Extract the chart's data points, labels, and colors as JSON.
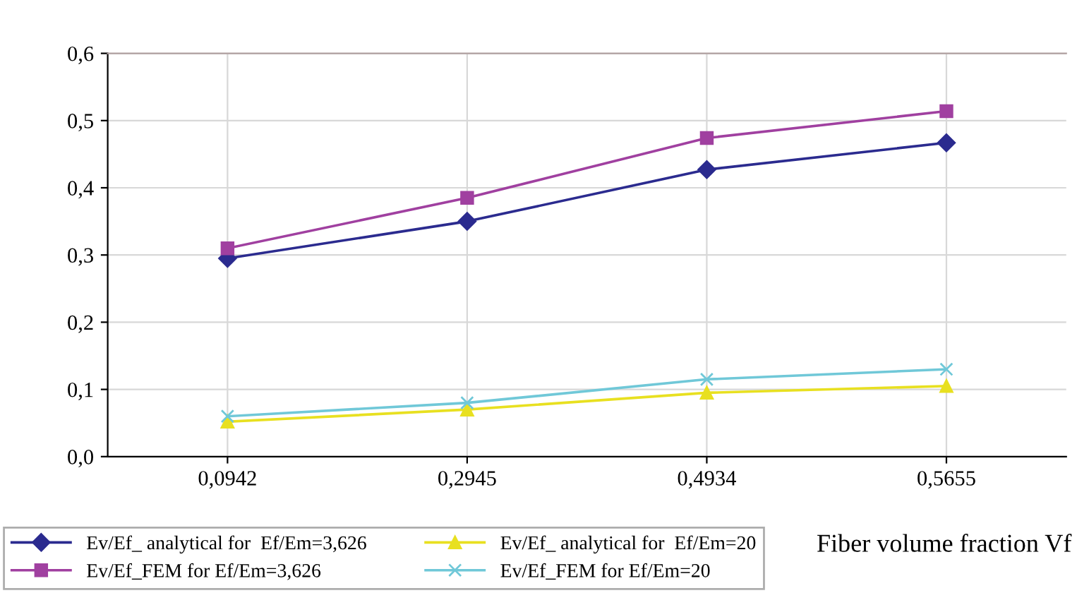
{
  "chart_data": {
    "type": "line",
    "xlabel": "Fiber volume fraction Vf",
    "categories": [
      "0,0942",
      "0,2945",
      "0,4934",
      "0,5655"
    ],
    "series": [
      {
        "name": "Ev/Ef_ analytical for  Ef/Em=3,626",
        "color": "#2b2b8f",
        "marker": "diamond",
        "values": [
          0.295,
          0.35,
          0.427,
          0.467
        ]
      },
      {
        "name": "Ev/Ef_FEM for Ef/Em=3,626",
        "color": "#a040a0",
        "marker": "square",
        "values": [
          0.31,
          0.385,
          0.474,
          0.514
        ]
      },
      {
        "name": "Ev/Ef_ analytical for  Ef/Em=20",
        "color": "#e8e020",
        "marker": "triangle",
        "values": [
          0.052,
          0.07,
          0.095,
          0.105
        ]
      },
      {
        "name": "Ev/Ef_FEM for Ef/Em=20",
        "color": "#70c8d8",
        "marker": "cross",
        "values": [
          0.06,
          0.08,
          0.115,
          0.13
        ]
      }
    ],
    "ylim": [
      0,
      0.6
    ],
    "yticks": [
      {
        "value": 0,
        "label": "0,0"
      },
      {
        "value": 0.1,
        "label": "0,1"
      },
      {
        "value": 0.2,
        "label": "0,2"
      },
      {
        "value": 0.3,
        "label": "0,3"
      },
      {
        "value": 0.4,
        "label": "0,4"
      },
      {
        "value": 0.5,
        "label": "0,5"
      },
      {
        "value": 0.6,
        "label": "0,6"
      }
    ],
    "grid": true,
    "legend": "bottom"
  }
}
